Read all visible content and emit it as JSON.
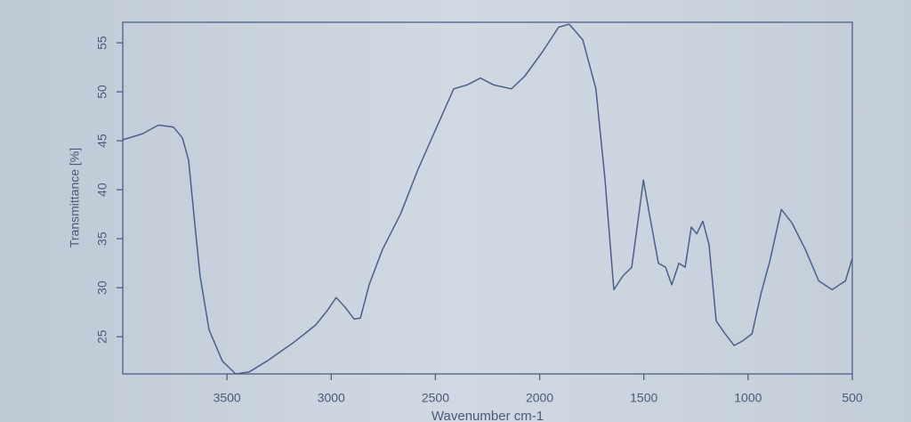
{
  "chart_data": {
    "type": "line",
    "x_label": "Wavenumber cm-1",
    "y_label": "Transmittance [%]",
    "xlim": [
      4000,
      500
    ],
    "ylim": [
      21.2,
      57.1
    ],
    "xticks": [
      3500,
      3000,
      2500,
      2000,
      1500,
      1000,
      500
    ],
    "yticks": [
      25,
      30,
      35,
      40,
      45,
      50,
      55
    ],
    "grid": false,
    "x": [
      4000,
      3906,
      3829,
      3757,
      3714,
      3684,
      3659,
      3629,
      3586,
      3522,
      3458,
      3394,
      3309,
      3181,
      3074,
      3018,
      2976,
      2933,
      2890,
      2860,
      2818,
      2754,
      2668,
      2583,
      2498,
      2412,
      2348,
      2284,
      2220,
      2135,
      2071,
      1986,
      1909,
      1858,
      1793,
      1730,
      1687,
      1644,
      1601,
      1558,
      1524,
      1502,
      1473,
      1430,
      1396,
      1366,
      1332,
      1302,
      1272,
      1246,
      1217,
      1187,
      1153,
      1110,
      1067,
      1024,
      981,
      938,
      895,
      840,
      789,
      725,
      661,
      597,
      533,
      500
    ],
    "series": [
      {
        "color": "#4a5f8a",
        "values": [
          45.1,
          45.7,
          46.6,
          46.4,
          45.3,
          43.0,
          37.5,
          31.2,
          25.7,
          22.5,
          21.2,
          21.4,
          22.5,
          24.4,
          26.2,
          27.7,
          29.0,
          28.0,
          26.8,
          26.9,
          30.3,
          33.9,
          37.5,
          42.1,
          46.2,
          50.3,
          50.7,
          51.4,
          50.7,
          50.3,
          51.6,
          54.1,
          56.6,
          56.9,
          55.3,
          50.3,
          41.2,
          29.8,
          31.2,
          32.1,
          37.5,
          41.0,
          37.5,
          32.5,
          32.1,
          30.3,
          32.5,
          32.1,
          36.2,
          35.5,
          36.8,
          34.4,
          26.6,
          25.3,
          24.1,
          24.6,
          25.3,
          29.4,
          32.8,
          38.0,
          36.6,
          33.9,
          30.7,
          29.8,
          30.7,
          33.0
        ]
      }
    ]
  }
}
